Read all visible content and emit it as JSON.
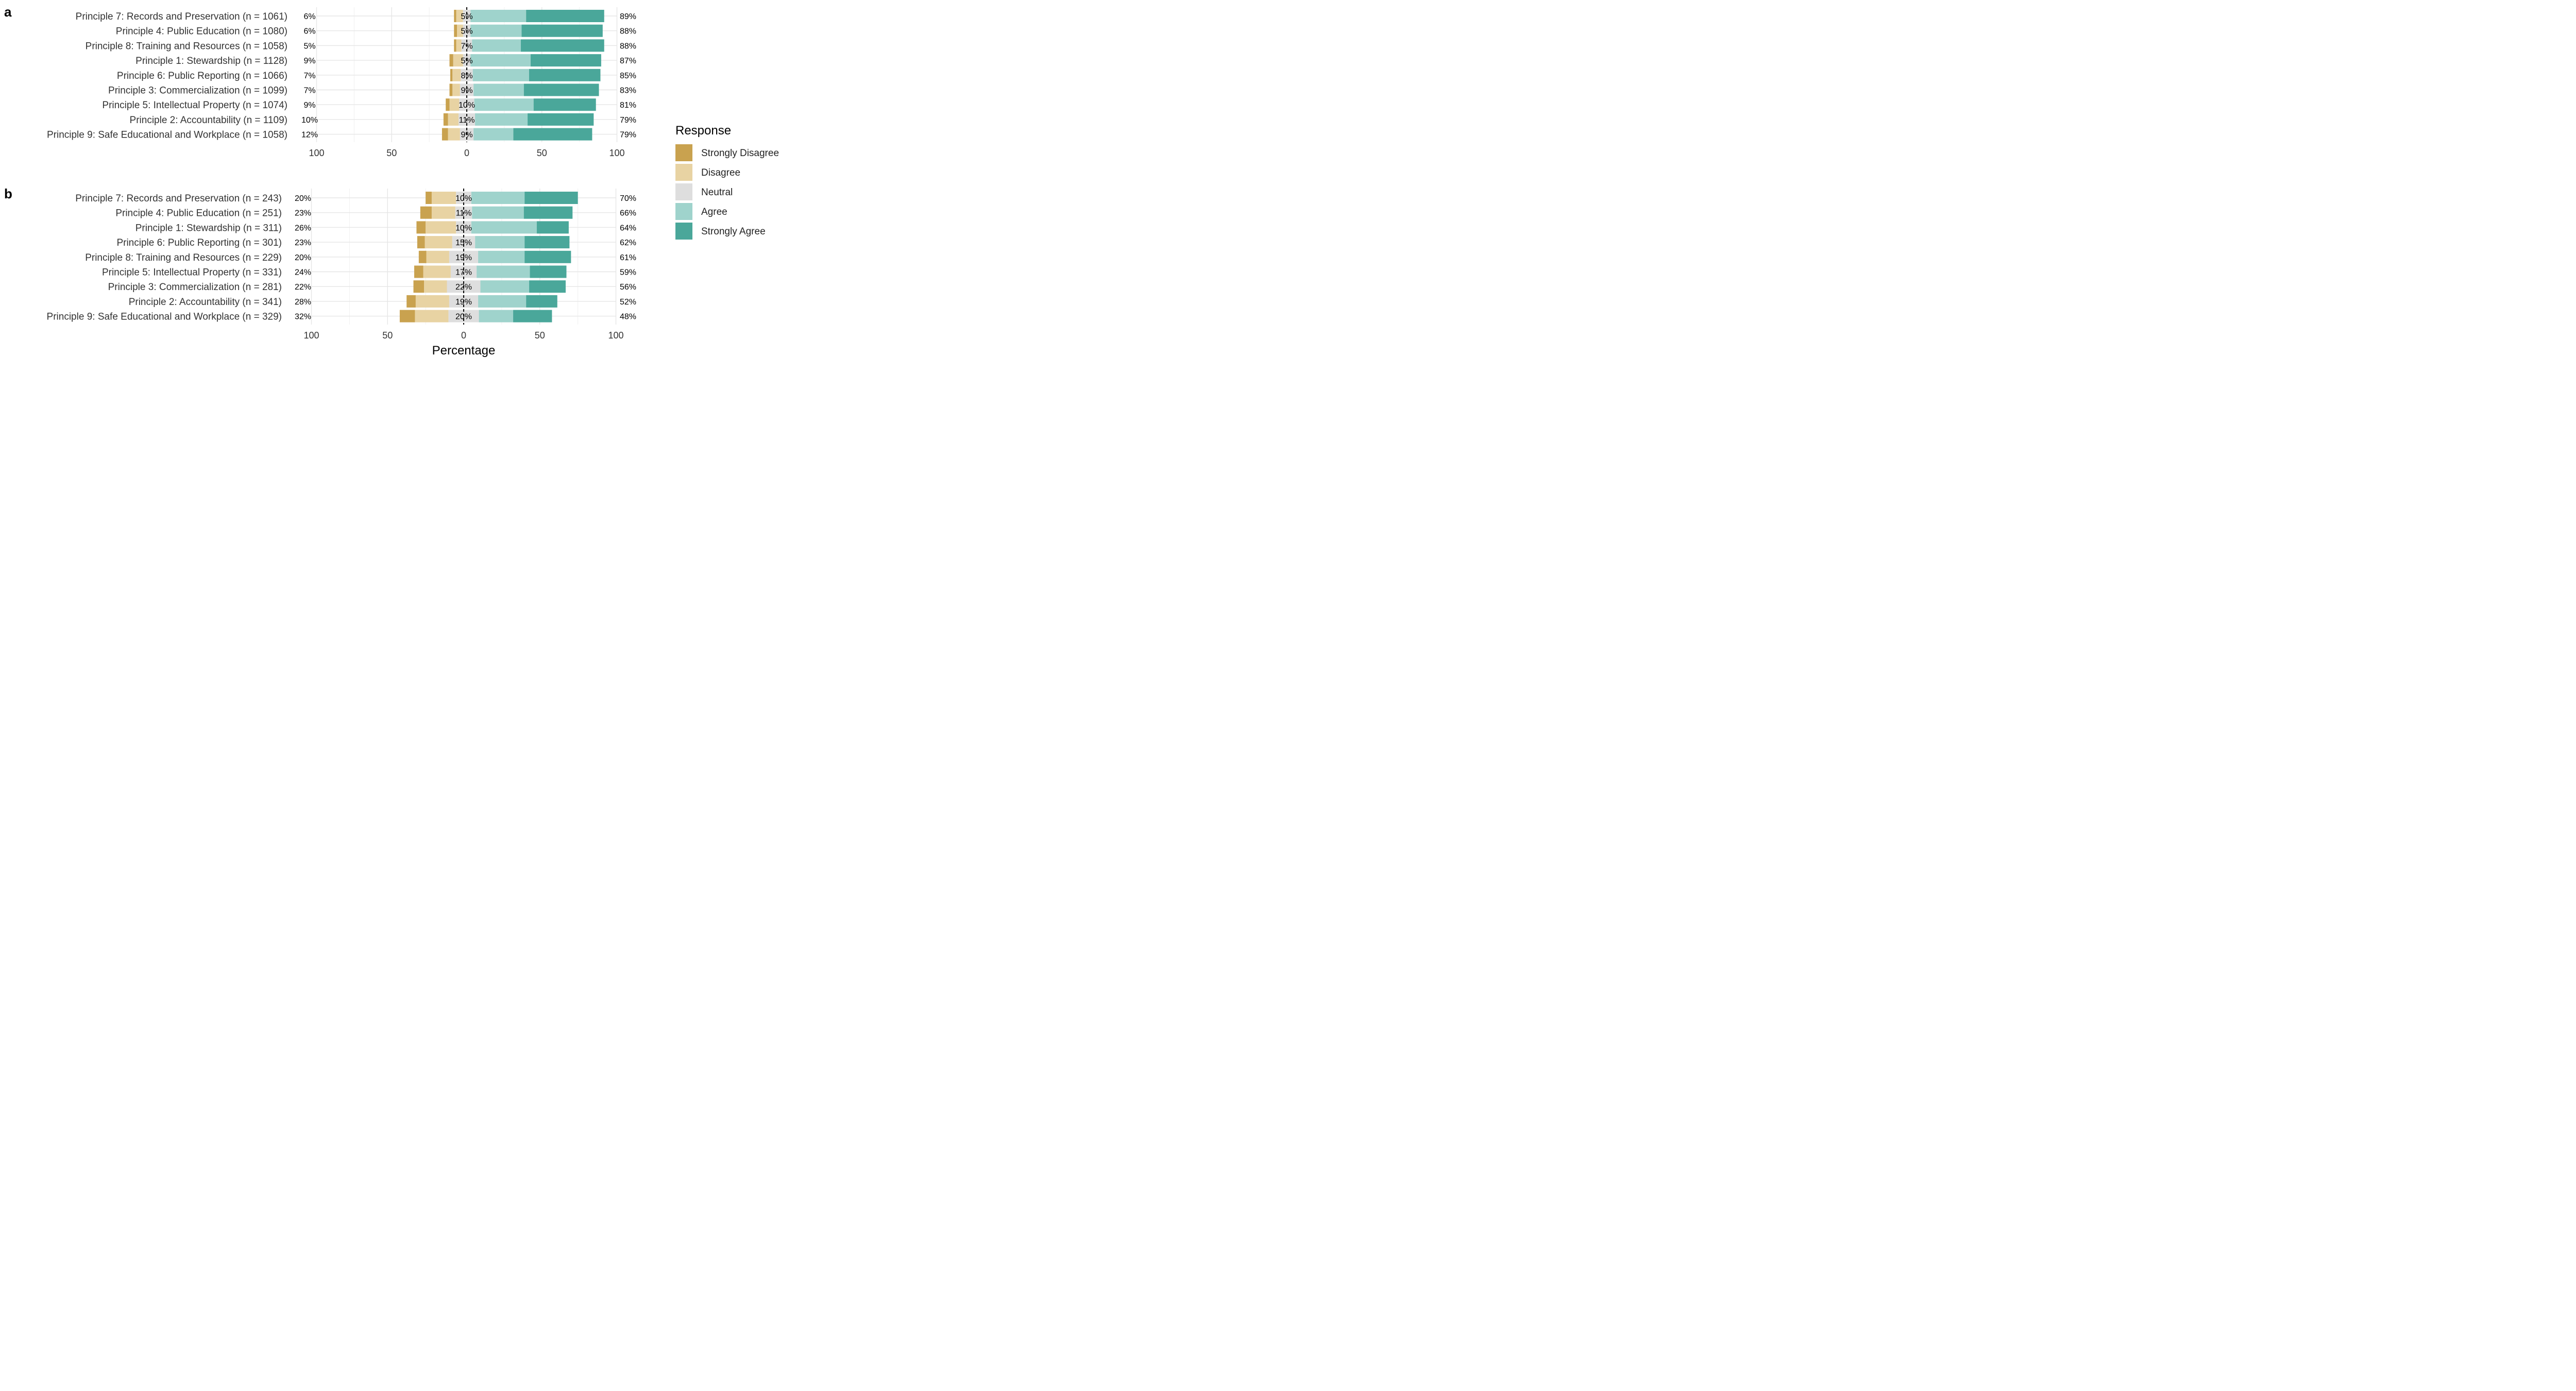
{
  "chart_data": {
    "type": "bar",
    "subtype": "diverging-stacked-likert",
    "xlabel": "Percentage",
    "xlim": [
      -100,
      100
    ],
    "x_ticks": [
      "100",
      "50",
      "0",
      "50",
      "100"
    ],
    "legend": {
      "title": "Response",
      "placement": "right",
      "entries": [
        "Strongly Disagree",
        "Disagree",
        "Neutral",
        "Agree",
        "Strongly Agree"
      ]
    },
    "colors": {
      "Strongly Disagree": "#c9a24f",
      "Disagree": "#e8d3a3",
      "Neutral": "#dedede",
      "Agree": "#9fd3cc",
      "Strongly Agree": "#4aa79a"
    },
    "panels": [
      {
        "tag": "a",
        "rows": [
          {
            "label": "Principle 7: Records and Preservation (n = 1061)",
            "strongly_disagree": 1.5,
            "disagree": 4.5,
            "neutral": 5,
            "agree": 37,
            "strongly_agree": 52,
            "low_pct": "6%",
            "neutral_pct": "5%",
            "high_pct": "89%"
          },
          {
            "label": "Principle 4: Public Education (n = 1080)",
            "strongly_disagree": 2,
            "disagree": 4,
            "neutral": 5,
            "agree": 34,
            "strongly_agree": 54,
            "low_pct": "6%",
            "neutral_pct": "5%",
            "high_pct": "88%"
          },
          {
            "label": "Principle 8: Training and Resources (n = 1058)",
            "strongly_disagree": 1.5,
            "disagree": 3.5,
            "neutral": 7,
            "agree": 32.5,
            "strongly_agree": 55.5,
            "low_pct": "5%",
            "neutral_pct": "7%",
            "high_pct": "88%"
          },
          {
            "label": "Principle 1: Stewardship (n = 1128)",
            "strongly_disagree": 2.5,
            "disagree": 6.5,
            "neutral": 5,
            "agree": 40,
            "strongly_agree": 47,
            "low_pct": "9%",
            "neutral_pct": "5%",
            "high_pct": "87%"
          },
          {
            "label": "Principle 6: Public Reporting (n = 1066)",
            "strongly_disagree": 1.5,
            "disagree": 5.5,
            "neutral": 8,
            "agree": 37.5,
            "strongly_agree": 47.5,
            "low_pct": "7%",
            "neutral_pct": "8%",
            "high_pct": "85%"
          },
          {
            "label": "Principle 3: Commercialization (n = 1099)",
            "strongly_disagree": 2,
            "disagree": 5,
            "neutral": 9,
            "agree": 33.5,
            "strongly_agree": 50,
            "low_pct": "7%",
            "neutral_pct": "9%",
            "high_pct": "83%"
          },
          {
            "label": "Principle 5: Intellectual Property (n = 1074)",
            "strongly_disagree": 2.5,
            "disagree": 6.5,
            "neutral": 10,
            "agree": 39.5,
            "strongly_agree": 41.5,
            "low_pct": "9%",
            "neutral_pct": "10%",
            "high_pct": "81%"
          },
          {
            "label": "Principle 2: Accountability (n = 1109)",
            "strongly_disagree": 3,
            "disagree": 7,
            "neutral": 11,
            "agree": 35,
            "strongly_agree": 44,
            "low_pct": "10%",
            "neutral_pct": "11%",
            "high_pct": "79%"
          },
          {
            "label": "Principle 9: Safe Educational and Workplace (n = 1058)",
            "strongly_disagree": 4,
            "disagree": 8,
            "neutral": 9,
            "agree": 26.5,
            "strongly_agree": 52.5,
            "low_pct": "12%",
            "neutral_pct": "9%",
            "high_pct": "79%"
          }
        ]
      },
      {
        "tag": "b",
        "rows": [
          {
            "label": "Principle 7: Records and Preservation (n = 243)",
            "strongly_disagree": 4,
            "disagree": 16,
            "neutral": 10,
            "agree": 35,
            "strongly_agree": 35,
            "low_pct": "20%",
            "neutral_pct": "10%",
            "high_pct": "70%"
          },
          {
            "label": "Principle 4: Public Education (n = 251)",
            "strongly_disagree": 7.5,
            "disagree": 15.5,
            "neutral": 11,
            "agree": 34,
            "strongly_agree": 32,
            "low_pct": "23%",
            "neutral_pct": "11%",
            "high_pct": "66%"
          },
          {
            "label": "Principle 1: Stewardship (n = 311)",
            "strongly_disagree": 6,
            "disagree": 20,
            "neutral": 10,
            "agree": 43,
            "strongly_agree": 21,
            "low_pct": "26%",
            "neutral_pct": "10%",
            "high_pct": "64%"
          },
          {
            "label": "Principle 6: Public Reporting (n = 301)",
            "strongly_disagree": 5,
            "disagree": 18,
            "neutral": 15,
            "agree": 32.5,
            "strongly_agree": 29.5,
            "low_pct": "23%",
            "neutral_pct": "15%",
            "high_pct": "62%"
          },
          {
            "label": "Principle 8: Training and Resources (n = 229)",
            "strongly_disagree": 5,
            "disagree": 15,
            "neutral": 19,
            "agree": 30.5,
            "strongly_agree": 30.5,
            "low_pct": "20%",
            "neutral_pct": "19%",
            "high_pct": "61%"
          },
          {
            "label": "Principle 5: Intellectual Property (n = 331)",
            "strongly_disagree": 6,
            "disagree": 18,
            "neutral": 17,
            "agree": 35,
            "strongly_agree": 24,
            "low_pct": "24%",
            "neutral_pct": "17%",
            "high_pct": "59%"
          },
          {
            "label": "Principle 3: Commercialization (n = 281)",
            "strongly_disagree": 7,
            "disagree": 15,
            "neutral": 22,
            "agree": 32,
            "strongly_agree": 24,
            "low_pct": "22%",
            "neutral_pct": "22%",
            "high_pct": "56%"
          },
          {
            "label": "Principle 2: Accountability (n = 341)",
            "strongly_disagree": 6,
            "disagree": 22,
            "neutral": 19,
            "agree": 31.5,
            "strongly_agree": 20.5,
            "low_pct": "28%",
            "neutral_pct": "19%",
            "high_pct": "52%"
          },
          {
            "label": "Principle 9: Safe Educational and Workplace (n = 329)",
            "strongly_disagree": 10,
            "disagree": 22,
            "neutral": 20,
            "agree": 22.5,
            "strongly_agree": 25.5,
            "low_pct": "32%",
            "neutral_pct": "20%",
            "high_pct": "48%"
          }
        ]
      }
    ]
  }
}
